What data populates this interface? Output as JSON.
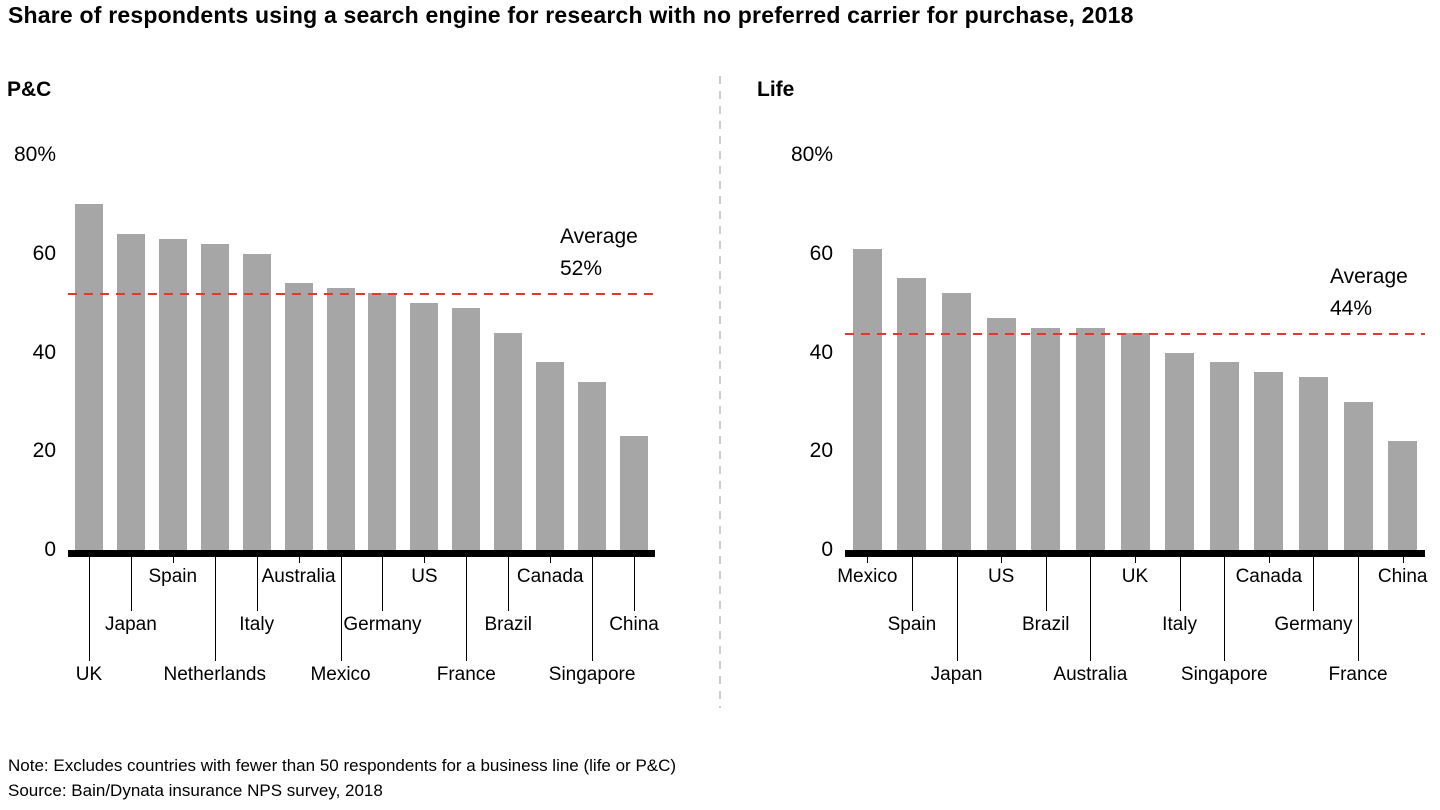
{
  "title": "Share of respondents using a search engine for research with no preferred carrier for purchase, 2018",
  "note": "Note: Excludes countries with fewer than 50 respondents for a business line (life or P&C)",
  "source": "Source: Bain/Dynata insurance NPS survey, 2018",
  "colors": {
    "bar": "#a6a6a6",
    "average_line": "#e03a30",
    "axis": "#000000",
    "divider": "#cccccc"
  },
  "chart_data": [
    {
      "type": "bar",
      "title": "P&C",
      "ylabel": "%",
      "ylim": [
        0,
        80
      ],
      "grid": false,
      "yticks": [
        0,
        20,
        40,
        60,
        80
      ],
      "ytick_labels": [
        "0",
        "20",
        "40",
        "60",
        "80%"
      ],
      "categories": [
        "UK",
        "Japan",
        "Spain",
        "Netherlands",
        "Italy",
        "Australia",
        "Mexico",
        "Germany",
        "US",
        "France",
        "Brazil",
        "Canada",
        "Singapore",
        "China"
      ],
      "values": [
        70,
        64,
        63,
        62,
        60,
        54,
        53,
        52,
        50,
        49,
        44,
        38,
        34,
        23
      ],
      "label_row": [
        3,
        2,
        1,
        3,
        2,
        1,
        3,
        2,
        1,
        3,
        2,
        1,
        3,
        2
      ],
      "average": {
        "value": 52,
        "label": "Average\n52%"
      }
    },
    {
      "type": "bar",
      "title": "Life",
      "ylabel": "%",
      "ylim": [
        0,
        80
      ],
      "grid": false,
      "yticks": [
        0,
        20,
        40,
        60,
        80
      ],
      "ytick_labels": [
        "0",
        "20",
        "40",
        "60",
        "80%"
      ],
      "categories": [
        "Mexico",
        "Spain",
        "Japan",
        "US",
        "Brazil",
        "Australia",
        "UK",
        "Italy",
        "Singapore",
        "Canada",
        "Germany",
        "France",
        "China"
      ],
      "values": [
        61,
        55,
        52,
        47,
        45,
        45,
        44,
        40,
        38,
        36,
        35,
        30,
        22
      ],
      "label_row": [
        1,
        2,
        3,
        1,
        2,
        3,
        1,
        2,
        3,
        1,
        2,
        3,
        1
      ],
      "average": {
        "value": 44,
        "label": "Average\n44%"
      }
    }
  ]
}
